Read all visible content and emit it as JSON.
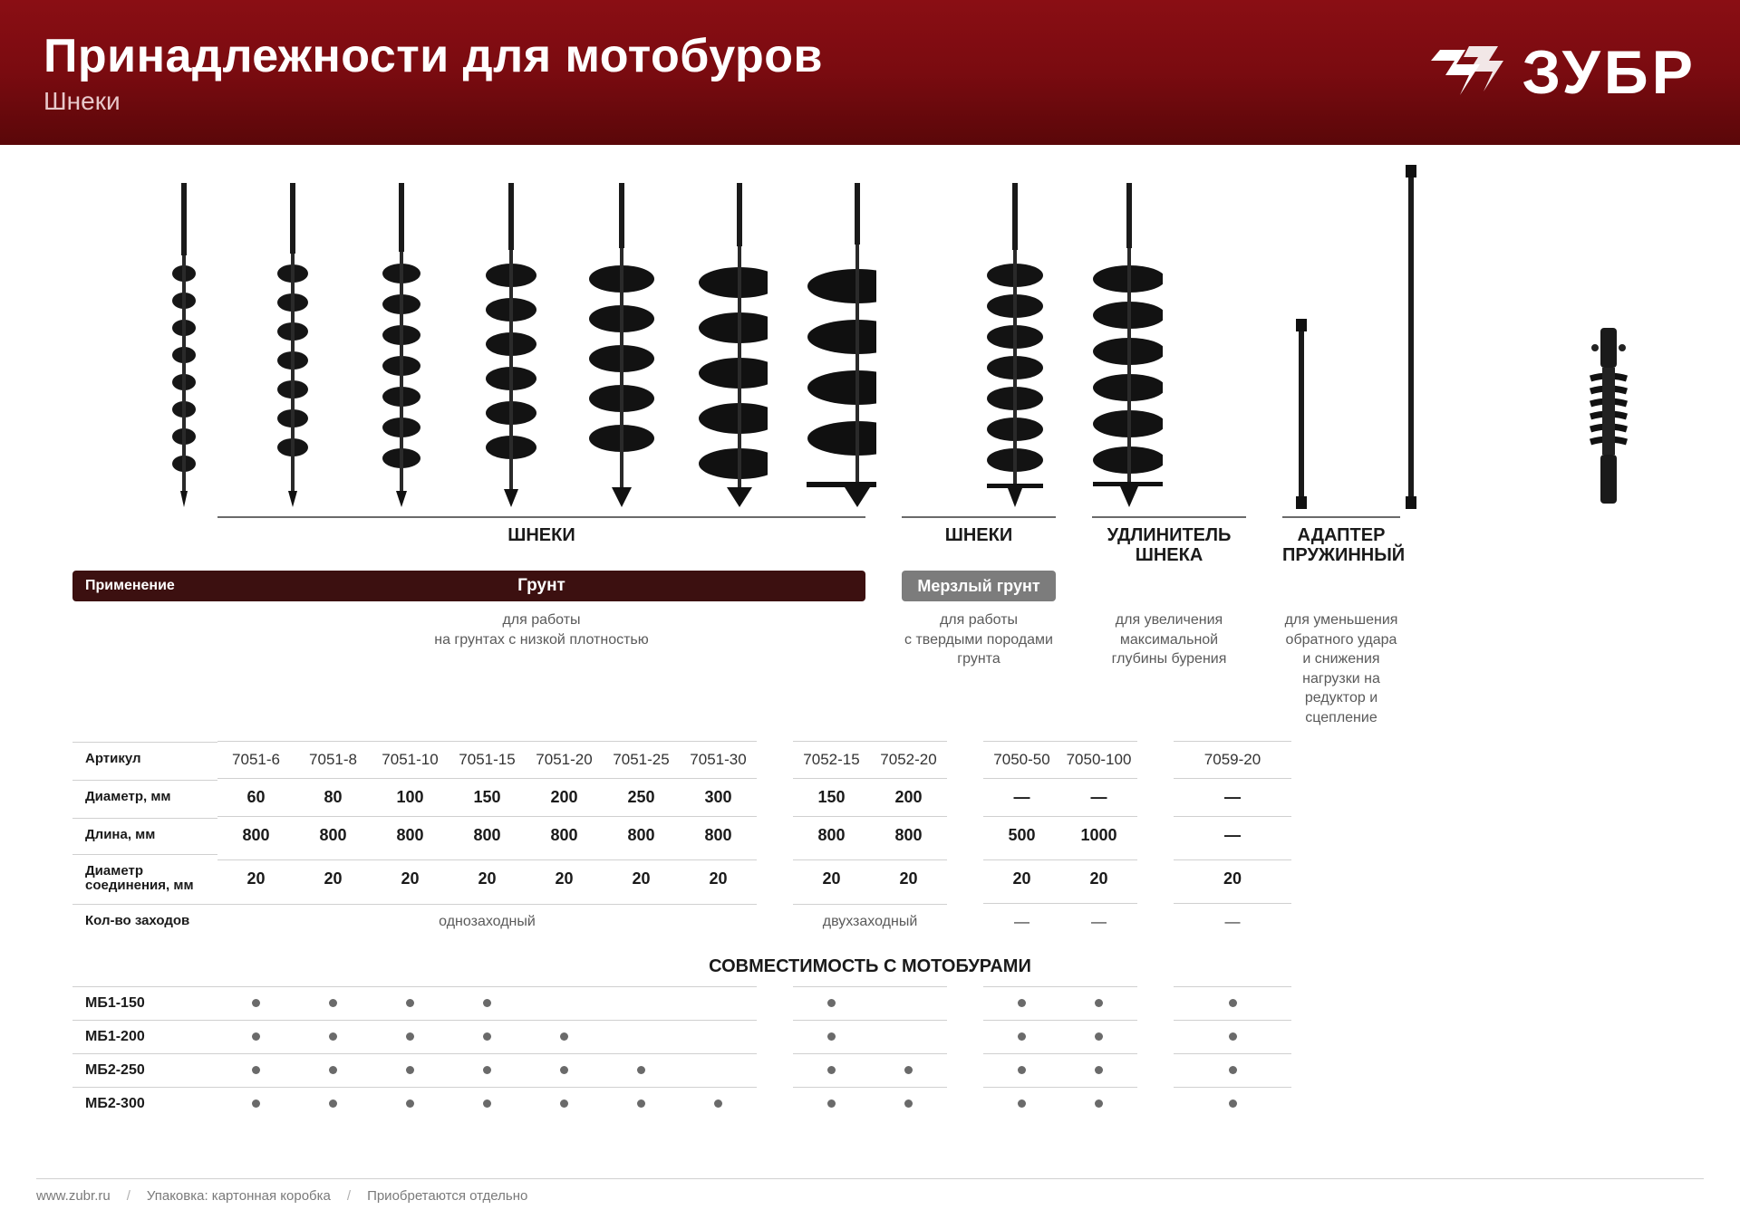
{
  "header": {
    "title": "Принадлежности для мотобуров",
    "subtitle": "Шнеки",
    "brand": "ЗУБР"
  },
  "sections": {
    "augers": "ШНЕКИ",
    "augers2": "ШНЕКИ",
    "extender": "УДЛИНИТЕЛЬ ШНЕКА",
    "adapter": "АДАПТЕР ПРУЖИННЫЙ"
  },
  "application": {
    "label": "Применение",
    "ground": "Грунт",
    "frozen": "Мерзлый грунт"
  },
  "descriptions": {
    "ground": "для работы\nна грунтах с низкой плотностью",
    "frozen": "для работы\nс твердыми породами грунта",
    "extender": "для увеличения максимальной глубины бурения",
    "adapter": "для уменьшения обратного удара и снижения нагрузки на редуктор и сцепление"
  },
  "rowLabels": {
    "article": "Артикул",
    "diameter": "Диаметр, мм",
    "length": "Длина, мм",
    "connDiameter": "Диаметр соединения, мм",
    "starts": "Кол-во заходов"
  },
  "columns": {
    "g1": {
      "article": "7051-6",
      "diameter": "60",
      "length": "800",
      "conn": "20"
    },
    "g2": {
      "article": "7051-8",
      "diameter": "80",
      "length": "800",
      "conn": "20"
    },
    "g3": {
      "article": "7051-10",
      "diameter": "100",
      "length": "800",
      "conn": "20"
    },
    "g4": {
      "article": "7051-15",
      "diameter": "150",
      "length": "800",
      "conn": "20"
    },
    "g5": {
      "article": "7051-20",
      "diameter": "200",
      "length": "800",
      "conn": "20"
    },
    "g6": {
      "article": "7051-25",
      "diameter": "250",
      "length": "800",
      "conn": "20"
    },
    "g7": {
      "article": "7051-30",
      "diameter": "300",
      "length": "800",
      "conn": "20"
    },
    "f1": {
      "article": "7052-15",
      "diameter": "150",
      "length": "800",
      "conn": "20"
    },
    "f2": {
      "article": "7052-20",
      "diameter": "200",
      "length": "800",
      "conn": "20"
    },
    "e1": {
      "article": "7050-50",
      "diameter": "—",
      "length": "500",
      "conn": "20"
    },
    "e2": {
      "article": "7050-100",
      "diameter": "—",
      "length": "1000",
      "conn": "20"
    },
    "a1": {
      "article": "7059-20",
      "diameter": "—",
      "length": "—",
      "conn": "20"
    }
  },
  "starts": {
    "single": "однозаходный",
    "double": "двухзаходный",
    "dash": "—"
  },
  "compatTitle": "СОВМЕСТИМОСТЬ С МОТОБУРАМИ",
  "compat": {
    "r1": {
      "label": "МБ1-150",
      "cells": [
        1,
        1,
        1,
        1,
        0,
        0,
        0,
        1,
        0,
        1,
        1,
        1
      ]
    },
    "r2": {
      "label": "МБ1-200",
      "cells": [
        1,
        1,
        1,
        1,
        1,
        0,
        0,
        1,
        0,
        1,
        1,
        1
      ]
    },
    "r3": {
      "label": "МБ2-250",
      "cells": [
        1,
        1,
        1,
        1,
        1,
        1,
        0,
        1,
        1,
        1,
        1,
        1
      ]
    },
    "r4": {
      "label": "МБ2-300",
      "cells": [
        1,
        1,
        1,
        1,
        1,
        1,
        1,
        1,
        1,
        1,
        1,
        1
      ]
    }
  },
  "footer": {
    "url": "www.zubr.ru",
    "packaging": "Упаковка: картонная коробка",
    "note": "Приобретаются отдельно"
  },
  "style": {
    "header_bg_top": "#8a0e14",
    "header_bg_bottom": "#5a0709",
    "app_bar_bg": "#3c1010",
    "frozen_bg": "#7c7c7c",
    "divider": "#d0d0d0",
    "dot_color": "#6a6a6a",
    "text_muted": "#5a5a5a"
  },
  "products": {
    "auger_heights": [
      360,
      360,
      360,
      360,
      360,
      360,
      360,
      360,
      360
    ],
    "auger_widths": [
      26,
      34,
      42,
      56,
      72,
      90,
      110,
      62,
      80
    ],
    "ext_heights": [
      210,
      380
    ],
    "adapter_height": 200
  }
}
